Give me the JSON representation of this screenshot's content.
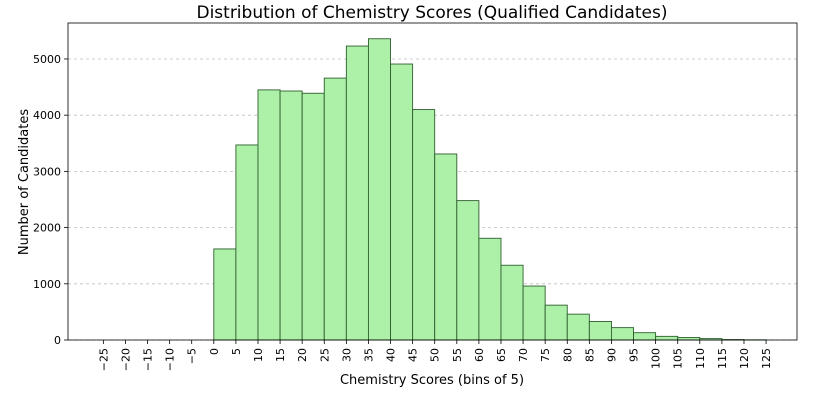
{
  "chart_data": {
    "type": "bar",
    "title": "Distribution of Chemistry Scores (Qualified Candidates)",
    "xlabel": "Chemistry Scores (bins of 5)",
    "ylabel": "Number of Candidates",
    "bin_width": 5,
    "bins": [
      {
        "start": 0,
        "value": 1620
      },
      {
        "start": 5,
        "value": 3470
      },
      {
        "start": 10,
        "value": 4450
      },
      {
        "start": 15,
        "value": 4430
      },
      {
        "start": 20,
        "value": 4390
      },
      {
        "start": 25,
        "value": 4660
      },
      {
        "start": 30,
        "value": 5230
      },
      {
        "start": 35,
        "value": 5360
      },
      {
        "start": 40,
        "value": 4910
      },
      {
        "start": 45,
        "value": 4100
      },
      {
        "start": 50,
        "value": 3310
      },
      {
        "start": 55,
        "value": 2480
      },
      {
        "start": 60,
        "value": 1810
      },
      {
        "start": 65,
        "value": 1330
      },
      {
        "start": 70,
        "value": 960
      },
      {
        "start": 75,
        "value": 620
      },
      {
        "start": 80,
        "value": 460
      },
      {
        "start": 85,
        "value": 330
      },
      {
        "start": 90,
        "value": 220
      },
      {
        "start": 95,
        "value": 130
      },
      {
        "start": 100,
        "value": 65
      },
      {
        "start": 105,
        "value": 45
      },
      {
        "start": 110,
        "value": 25
      },
      {
        "start": 115,
        "value": 8
      },
      {
        "start": 120,
        "value": 3
      }
    ],
    "xticks": [
      -25,
      -20,
      -15,
      -10,
      -5,
      0,
      5,
      10,
      15,
      20,
      25,
      30,
      35,
      40,
      45,
      50,
      55,
      60,
      65,
      70,
      75,
      80,
      85,
      90,
      95,
      100,
      105,
      110,
      115,
      120,
      125
    ],
    "xtick_labels": [
      "−25",
      "−20",
      "−15",
      "−10",
      "−5",
      "0",
      "5",
      "10",
      "15",
      "20",
      "25",
      "30",
      "35",
      "40",
      "45",
      "50",
      "55",
      "60",
      "65",
      "70",
      "75",
      "80",
      "85",
      "90",
      "95",
      "100",
      "105",
      "110",
      "115",
      "120",
      "125"
    ],
    "yticks": [
      0,
      1000,
      2000,
      3000,
      4000,
      5000
    ],
    "xlim": [
      -33,
      132
    ],
    "ylim": [
      0,
      5640
    ],
    "grid": "y-dashed",
    "bar_color": "#adf0a8",
    "edge_color": "#2f5f2f"
  }
}
